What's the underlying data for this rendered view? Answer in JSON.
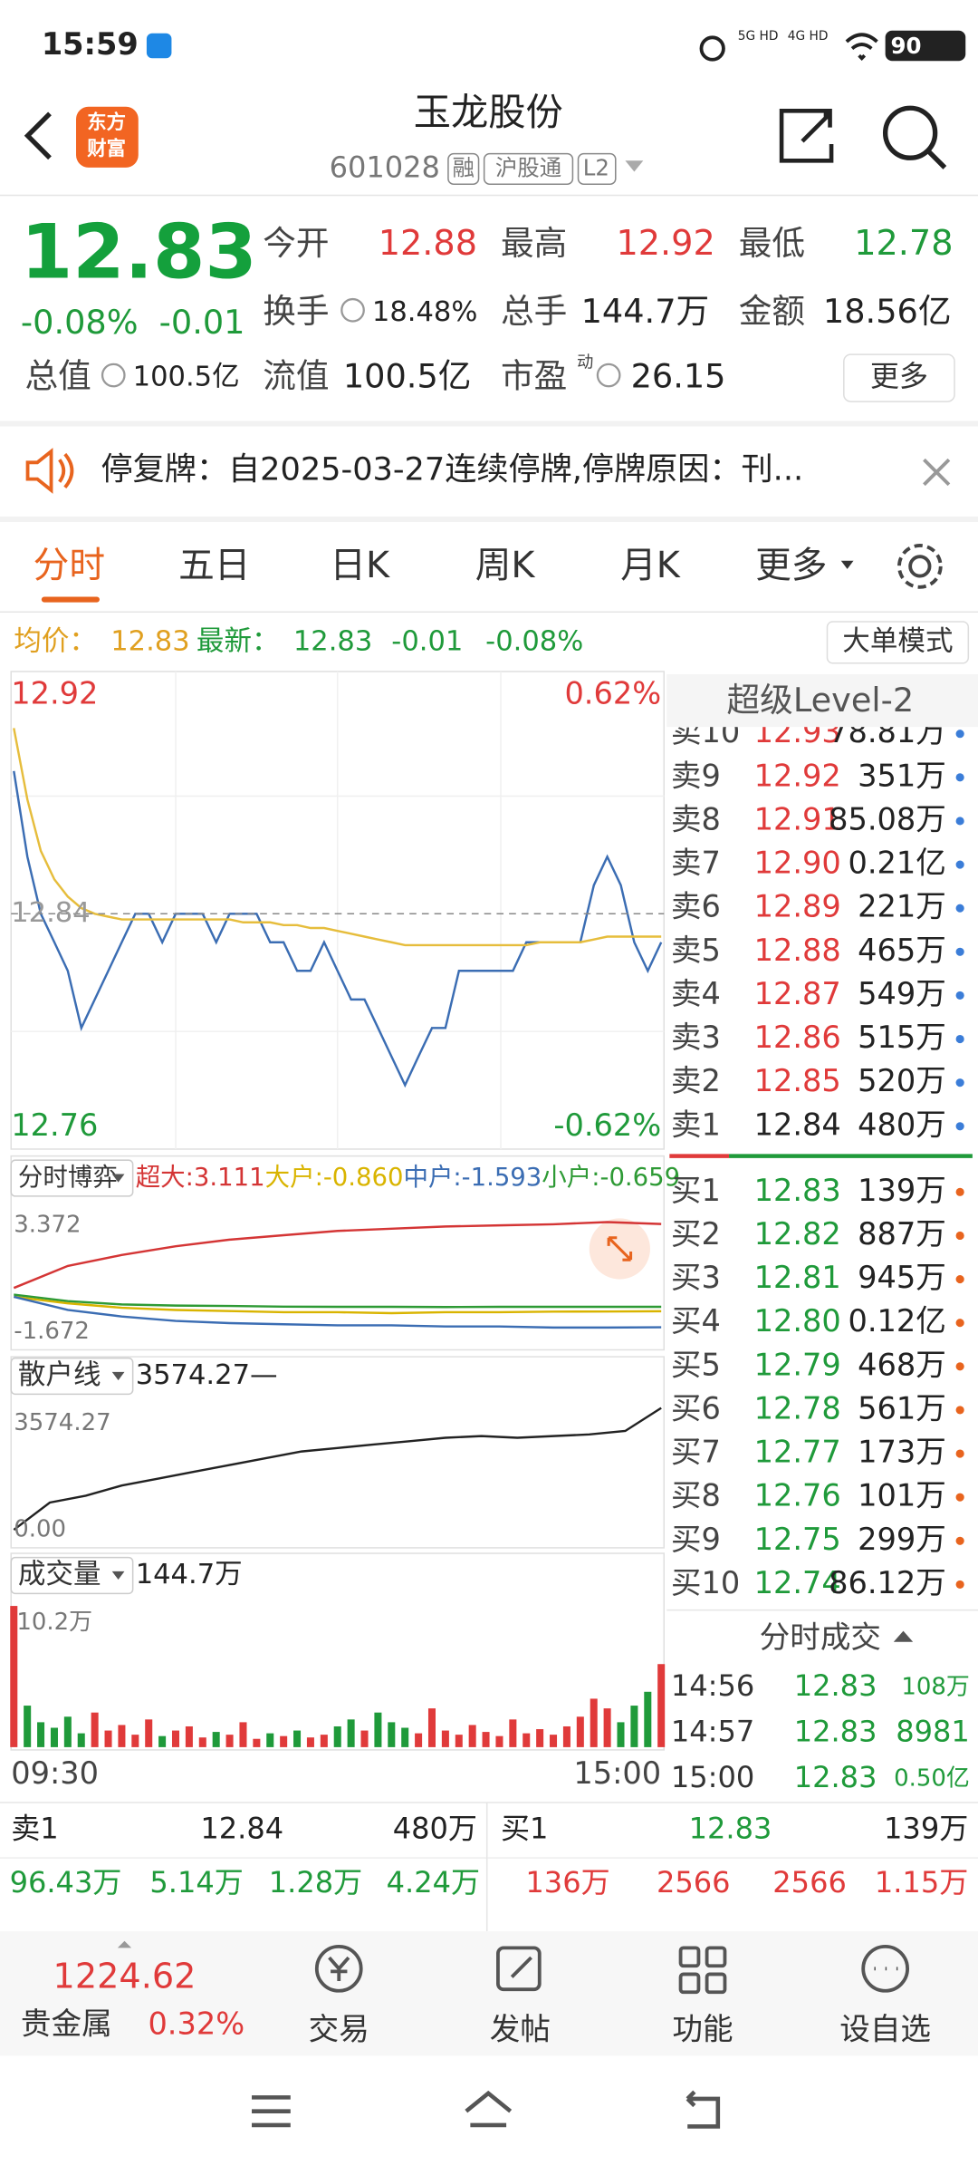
{
  "status": {
    "time": "15:59",
    "net1": "5G HD",
    "net2": "4G HD",
    "battery": "90"
  },
  "header": {
    "logo": [
      "东方",
      "财富"
    ],
    "title": "玉龙股份",
    "code": "601028",
    "tags": [
      "融",
      "沪股通",
      "L2"
    ]
  },
  "quote": {
    "price": "12.83",
    "change_pct": "-0.08%",
    "change": "-0.01",
    "row1": [
      {
        "label": "今开",
        "value": "12.88"
      },
      {
        "label": "最高",
        "value": "12.92"
      },
      {
        "label": "最低",
        "value": "12.78"
      }
    ],
    "row2": [
      {
        "label": "换手",
        "value": "18.48%"
      },
      {
        "label": "总手",
        "value": "144.7万"
      },
      {
        "label": "金额",
        "value": "18.56亿"
      }
    ],
    "row3": [
      {
        "label": "总值",
        "value": "100.5亿"
      },
      {
        "label": "流值",
        "value": "100.5亿"
      },
      {
        "label": "市盈",
        "sup": "动",
        "value": "26.15"
      }
    ],
    "more": "更多"
  },
  "notice": {
    "text": "停复牌：自2025-03-27连续停牌,停牌原因：刊..."
  },
  "tabs": [
    "分时",
    "五日",
    "日K",
    "周K",
    "月K",
    "更多"
  ],
  "summary": {
    "avg_label": "均价：",
    "avg": "12.83",
    "latest_label": "最新：",
    "latest": "12.83",
    "change": "-0.01",
    "change_pct": "-0.08%",
    "mode": "大单模式"
  },
  "chart_data": [
    {
      "type": "line",
      "ylim": [
        12.76,
        12.92
      ],
      "yticks": [
        12.92,
        12.76
      ],
      "reference": 12.84,
      "y2lim": [
        -0.62,
        0.62
      ],
      "y2ticks": [
        {
          "value": 0.62,
          "label": "0.62%"
        },
        {
          "value": -0.62,
          "label": "-0.62%"
        }
      ],
      "grid": true,
      "series": [
        {
          "color": "#3b6db3",
          "values": [
            12.89,
            12.86,
            12.84,
            12.83,
            12.82,
            12.8,
            12.81,
            12.82,
            12.83,
            12.84,
            12.84,
            12.83,
            12.84,
            12.84,
            12.84,
            12.83,
            12.84,
            12.84,
            12.84,
            12.83,
            12.83,
            12.82,
            12.82,
            12.83,
            12.82,
            12.81,
            12.81,
            12.8,
            12.79,
            12.78,
            12.79,
            12.8,
            12.8,
            12.82,
            12.82,
            12.82,
            12.82,
            12.82,
            12.83,
            12.83,
            12.83,
            12.83,
            12.83,
            12.85,
            12.86,
            12.85,
            12.83,
            12.82,
            12.83
          ]
        },
        {
          "color": "#e6bd3c",
          "values": [
            12.905,
            12.88,
            12.862,
            12.852,
            12.846,
            12.842,
            12.84,
            12.839,
            12.838,
            12.838,
            12.838,
            12.838,
            12.838,
            12.838,
            12.838,
            12.838,
            12.838,
            12.837,
            12.837,
            12.837,
            12.836,
            12.836,
            12.835,
            12.835,
            12.834,
            12.833,
            12.832,
            12.831,
            12.83,
            12.829,
            12.829,
            12.829,
            12.829,
            12.829,
            12.829,
            12.829,
            12.829,
            12.829,
            12.829,
            12.83,
            12.83,
            12.83,
            12.83,
            12.831,
            12.832,
            12.832,
            12.832,
            12.832,
            12.832
          ]
        }
      ]
    },
    {
      "type": "line",
      "title": "分时博弈",
      "ylim": [
        -1.672,
        3.372
      ],
      "yticks": [
        3.372,
        -1.672
      ],
      "series": [
        {
          "name": "超大:3.111",
          "color": "#d43535",
          "values": [
            0.2,
            1.2,
            1.7,
            2.1,
            2.4,
            2.6,
            2.8,
            2.9,
            3.0,
            3.05,
            3.1,
            3.2,
            3.111
          ]
        },
        {
          "name": "大户:-0.860",
          "color": "#d9b400",
          "values": [
            -0.2,
            -0.5,
            -0.7,
            -0.8,
            -0.85,
            -0.9,
            -0.9,
            -0.95,
            -0.9,
            -0.9,
            -0.88,
            -0.87,
            -0.86
          ]
        },
        {
          "name": "中户:-1.593",
          "color": "#3b6db3",
          "values": [
            -0.2,
            -0.8,
            -1.1,
            -1.3,
            -1.4,
            -1.45,
            -1.5,
            -1.5,
            -1.55,
            -1.55,
            -1.6,
            -1.6,
            -1.593
          ]
        },
        {
          "name": "小户:-0.659",
          "color": "#2e9a35",
          "values": [
            -0.1,
            -0.4,
            -0.55,
            -0.6,
            -0.62,
            -0.65,
            -0.66,
            -0.66,
            -0.67,
            -0.66,
            -0.66,
            -0.66,
            -0.659
          ]
        }
      ]
    },
    {
      "type": "line",
      "title": "散户线",
      "subtitle": "3574.27—",
      "ylim": [
        0,
        3574.27
      ],
      "yticks": [
        3574.27,
        {
          "value": 0,
          "label": "0.00"
        }
      ],
      "series": [
        {
          "color": "#222222",
          "values": [
            0,
            800,
            1000,
            1300,
            1500,
            1700,
            1900,
            2100,
            2300,
            2400,
            2500,
            2600,
            2700,
            2750,
            2700,
            2750,
            2800,
            2900,
            3574.27
          ]
        }
      ]
    },
    {
      "type": "bar",
      "title": "成交量",
      "subtitle": "144.7万",
      "ylim": [
        0,
        102000
      ],
      "yticks": [
        {
          "value": 102000,
          "label": "10.2万"
        }
      ],
      "xticks": [
        {
          "value": 0,
          "label": "09:30"
        },
        {
          "value": 48,
          "label": "15:00"
        }
      ],
      "up_color": "#e03a3a",
      "down_color": "#1f9a3a",
      "values": [
        102000,
        30000,
        18000,
        14000,
        22000,
        10000,
        25000,
        12000,
        16000,
        9000,
        20000,
        8000,
        12000,
        15000,
        7000,
        11000,
        9000,
        18000,
        6000,
        10000,
        8000,
        12000,
        7000,
        9000,
        15000,
        20000,
        12000,
        25000,
        18000,
        14000,
        10000,
        28000,
        12000,
        9000,
        16000,
        11000,
        8000,
        20000,
        10000,
        13000,
        9000,
        15000,
        22000,
        35000,
        28000,
        18000,
        30000,
        40000,
        60000
      ]
    }
  ],
  "order_book": {
    "title": "超级Level-2",
    "sell": [
      {
        "label": "卖10",
        "price": "12.93",
        "volume": "78.81万"
      },
      {
        "label": "卖9",
        "price": "12.92",
        "volume": "351万"
      },
      {
        "label": "卖8",
        "price": "12.91",
        "volume": "85.08万"
      },
      {
        "label": "卖7",
        "price": "12.90",
        "volume": "0.21亿"
      },
      {
        "label": "卖6",
        "price": "12.89",
        "volume": "221万"
      },
      {
        "label": "卖5",
        "price": "12.88",
        "volume": "465万"
      },
      {
        "label": "卖4",
        "price": "12.87",
        "volume": "549万"
      },
      {
        "label": "卖3",
        "price": "12.86",
        "volume": "515万"
      },
      {
        "label": "卖2",
        "price": "12.85",
        "volume": "520万"
      },
      {
        "label": "卖1",
        "price": "12.84",
        "volume": "480万"
      }
    ],
    "buy": [
      {
        "label": "买1",
        "price": "12.83",
        "volume": "139万"
      },
      {
        "label": "买2",
        "price": "12.82",
        "volume": "887万"
      },
      {
        "label": "买3",
        "price": "12.81",
        "volume": "945万"
      },
      {
        "label": "买4",
        "price": "12.80",
        "volume": "0.12亿"
      },
      {
        "label": "买5",
        "price": "12.79",
        "volume": "468万"
      },
      {
        "label": "买6",
        "price": "12.78",
        "volume": "561万"
      },
      {
        "label": "买7",
        "price": "12.77",
        "volume": "173万"
      },
      {
        "label": "买8",
        "price": "12.76",
        "volume": "101万"
      },
      {
        "label": "买9",
        "price": "12.75",
        "volume": "299万"
      },
      {
        "label": "买10",
        "price": "12.74",
        "volume": "86.12万"
      }
    ]
  },
  "trades": {
    "title": "分时成交",
    "rows": [
      {
        "time": "14:56",
        "price": "12.83",
        "volume": "108万"
      },
      {
        "time": "14:57",
        "price": "12.83",
        "volume": "8981"
      },
      {
        "time": "15:00",
        "price": "12.83",
        "volume": "0.50亿"
      }
    ]
  },
  "bottom_table": {
    "left": {
      "head": [
        "卖1",
        "12.84",
        "480万"
      ],
      "cells": [
        "96.43万",
        "5.14万",
        "1.28万",
        "4.24万"
      ]
    },
    "right": {
      "head": [
        "买1",
        "12.83",
        "139万"
      ],
      "cells": [
        "136万",
        "2566",
        "2566",
        "1.15万"
      ]
    }
  },
  "nav": {
    "index_value": "1224.62",
    "index_name": "贵金属",
    "index_change": "0.32%",
    "items": [
      "交易",
      "发帖",
      "功能",
      "设自选"
    ]
  }
}
